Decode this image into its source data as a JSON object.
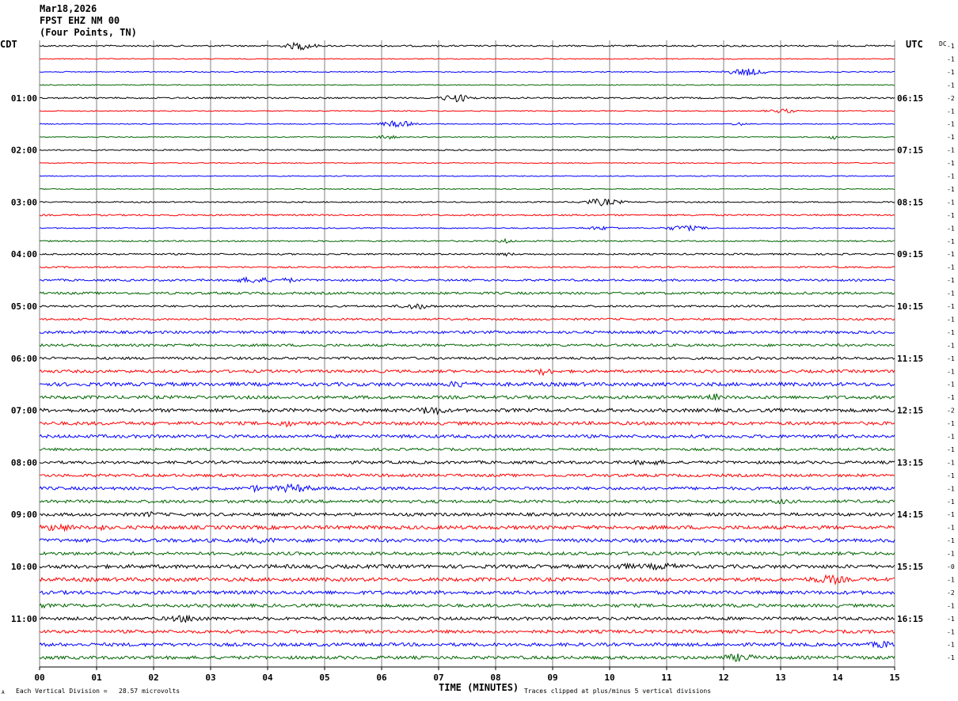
{
  "header": {
    "date": "Mar18,2026",
    "station": "FPST EHZ NM 00",
    "location": "(Four Points, TN)"
  },
  "left_zone": "CDT",
  "right_zone": "UTC",
  "dc_label": "DC",
  "footer": {
    "xlabel": "TIME (MINUTES)",
    "scale_note": "Each Vertical Division =   28.57 microvolts",
    "clip_note": "Traces clipped at plus/minus 5 vertical divisions",
    "corner_mark": "A"
  },
  "colors": {
    "cycle": [
      "#000000",
      "#ff0000",
      "#0000ff",
      "#006600"
    ],
    "grid": "#808080"
  },
  "chart_data": {
    "type": "line",
    "title": "",
    "xlabel": "TIME (MINUTES)",
    "x_ticks": [
      "00",
      "01",
      "02",
      "03",
      "04",
      "05",
      "06",
      "07",
      "08",
      "09",
      "10",
      "11",
      "12",
      "13",
      "14",
      "15"
    ],
    "xlim": [
      0,
      15
    ],
    "left_time_labels": [
      "01:00",
      "02:00",
      "03:00",
      "04:00",
      "05:00",
      "06:00",
      "07:00",
      "08:00",
      "09:00",
      "10:00",
      "11:00"
    ],
    "right_time_labels": [
      "06:15",
      "07:15",
      "08:15",
      "09:15",
      "10:15",
      "11:15",
      "12:15",
      "13:15",
      "14:15",
      "15:15",
      "16:15"
    ],
    "trace_count": 48,
    "dc_offsets": [
      "-1",
      "-1",
      "-1",
      "-1",
      "-2",
      "-1",
      "-1",
      "-1",
      "-1",
      "-1",
      "-1",
      "-1",
      "-1",
      "-1",
      "-1",
      "-1",
      "-1",
      "-1",
      "-1",
      "-1",
      "-1",
      "-1",
      "-1",
      "-1",
      "-1",
      "-1",
      "-1",
      "-1",
      "-2",
      "-1",
      "-1",
      "-1",
      "-1",
      "-1",
      "-1",
      "-1",
      "-1",
      "-1",
      "-1",
      "-1",
      "-0",
      "-1",
      "-2",
      "-1",
      "-1",
      "-1",
      "-1",
      "-1"
    ],
    "noise_level": [
      1,
      0.6,
      0.6,
      0.6,
      1,
      0.6,
      0.6,
      0.6,
      0.8,
      0.6,
      0.6,
      0.6,
      0.8,
      1,
      0.7,
      0.9,
      1,
      1,
      1.3,
      1.5,
      1.2,
      1.3,
      1.7,
      1.6,
      1.6,
      1.8,
      2.3,
      2.0,
      2.2,
      2.1,
      2.0,
      1.6,
      1.8,
      1.8,
      1.9,
      1.9,
      2.0,
      2.3,
      2.2,
      2.0,
      2.3,
      2.3,
      2.2,
      2.0,
      2.0,
      2.0,
      2.1,
      2.0
    ]
  }
}
